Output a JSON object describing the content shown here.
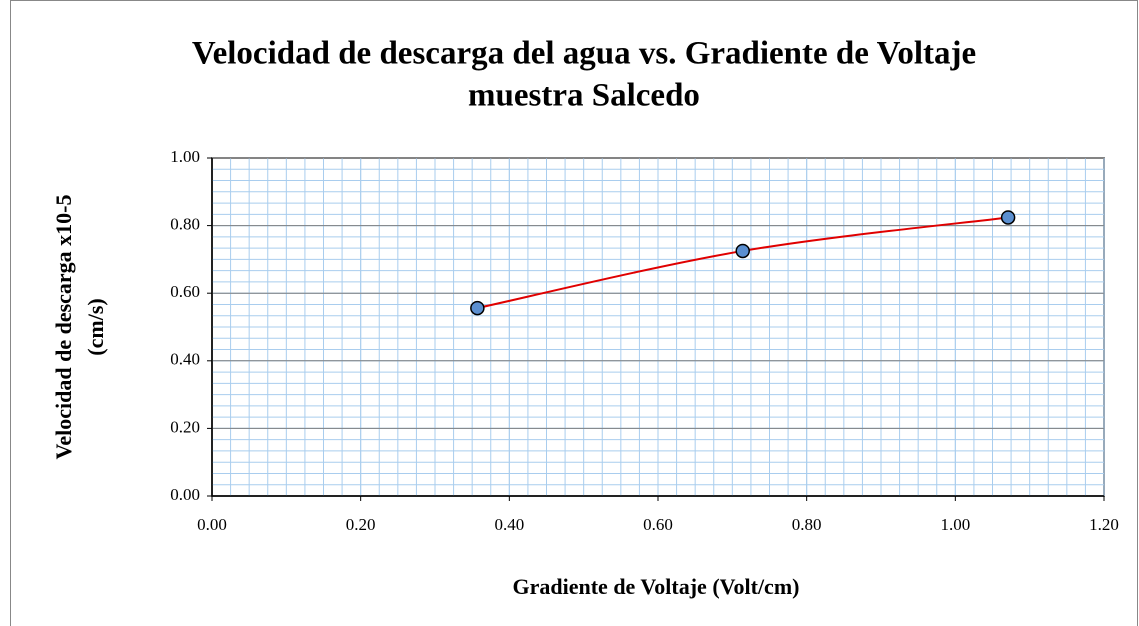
{
  "chart_data": {
    "type": "scatter",
    "title": [
      "Velocidad de descarga del agua vs. Gradiente de Voltaje",
      "muestra Salcedo"
    ],
    "x_label": "Gradiente de Voltaje (Volt/cm)",
    "y_label": [
      "Velocidad de descarga  x10-5",
      "(cm/s)"
    ],
    "series": [
      {
        "name": "muestra Salcedo",
        "color": "#e00000",
        "marker_color": "#5b8fd0",
        "x": [
          0.357,
          0.714,
          1.071
        ],
        "values": [
          0.556,
          0.725,
          0.824
        ]
      }
    ],
    "xlim": [
      0,
      1.2
    ],
    "xticks": [
      {
        "value": 0,
        "label": "0.00"
      },
      {
        "value": 0.2,
        "label": "0.20"
      },
      {
        "value": 0.4,
        "label": "0.40"
      },
      {
        "value": 0.6,
        "label": "0.60"
      },
      {
        "value": 0.8,
        "label": "0.80"
      },
      {
        "value": 1.0,
        "label": "1.00"
      },
      {
        "value": 1.2,
        "label": "1.20"
      }
    ],
    "ylim": [
      0,
      1
    ],
    "yticks": [
      {
        "value": 0,
        "label": "0.00"
      },
      {
        "value": 0.2,
        "label": "0.20"
      },
      {
        "value": 0.4,
        "label": "0.40"
      },
      {
        "value": 0.6,
        "label": "0.60"
      },
      {
        "value": 0.8,
        "label": "0.80"
      },
      {
        "value": 1.0,
        "label": "1.00"
      }
    ],
    "grid": true,
    "minor_grid": {
      "x_per_major": 8,
      "y_per_major": 6
    }
  }
}
